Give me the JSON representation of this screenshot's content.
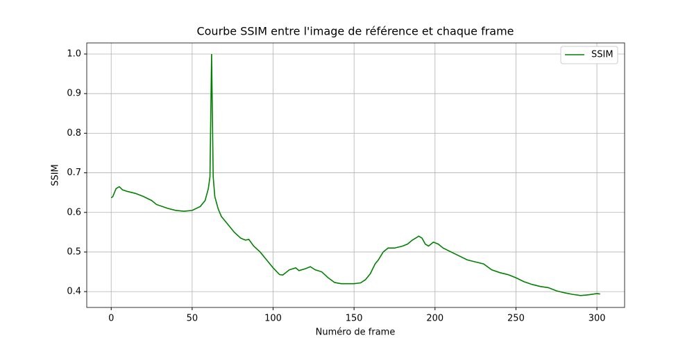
{
  "chart_data": {
    "type": "line",
    "title": "Courbe SSIM entre l'image de référence et chaque frame",
    "x_label": "Numéro de frame",
    "y_label": "SSIM",
    "x": [
      0,
      1,
      3,
      5,
      7,
      10,
      15,
      20,
      25,
      28,
      35,
      40,
      45,
      50,
      55,
      58,
      60,
      61,
      62,
      63,
      64,
      66,
      68,
      72,
      76,
      80,
      83,
      85,
      88,
      92,
      96,
      100,
      104,
      106,
      110,
      114,
      116,
      120,
      123,
      126,
      130,
      134,
      138,
      142,
      146,
      150,
      154,
      157,
      160,
      163,
      165,
      168,
      171,
      175,
      180,
      183,
      186,
      190,
      192,
      194,
      196,
      199,
      202,
      205,
      210,
      215,
      220,
      225,
      230,
      235,
      240,
      245,
      250,
      255,
      260,
      265,
      270,
      275,
      280,
      285,
      290,
      295,
      300,
      302
    ],
    "series": [
      {
        "name": "SSIM",
        "color": "#008000",
        "values": [
          0.637,
          0.64,
          0.66,
          0.665,
          0.657,
          0.653,
          0.648,
          0.64,
          0.63,
          0.62,
          0.61,
          0.605,
          0.603,
          0.605,
          0.615,
          0.63,
          0.66,
          0.69,
          1.0,
          0.69,
          0.64,
          0.61,
          0.59,
          0.57,
          0.55,
          0.535,
          0.53,
          0.532,
          0.515,
          0.5,
          0.48,
          0.46,
          0.443,
          0.442,
          0.455,
          0.46,
          0.453,
          0.458,
          0.463,
          0.455,
          0.45,
          0.435,
          0.423,
          0.42,
          0.42,
          0.42,
          0.422,
          0.43,
          0.445,
          0.47,
          0.48,
          0.5,
          0.51,
          0.51,
          0.515,
          0.52,
          0.53,
          0.54,
          0.535,
          0.52,
          0.515,
          0.525,
          0.52,
          0.51,
          0.5,
          0.49,
          0.48,
          0.475,
          0.47,
          0.455,
          0.448,
          0.443,
          0.435,
          0.425,
          0.418,
          0.413,
          0.41,
          0.402,
          0.397,
          0.393,
          0.39,
          0.392,
          0.395,
          0.394
        ]
      }
    ],
    "xlim": [
      -15.1,
      317.1
    ],
    "ylim": [
      0.36,
      1.028
    ],
    "xticks": [
      0,
      50,
      100,
      150,
      200,
      250,
      300
    ],
    "yticks": [
      0.4,
      0.5,
      0.6,
      0.7,
      0.8,
      0.9,
      {
        "value": 1.0,
        "label": "1.0"
      }
    ],
    "grid": true,
    "legend": "upper right"
  }
}
